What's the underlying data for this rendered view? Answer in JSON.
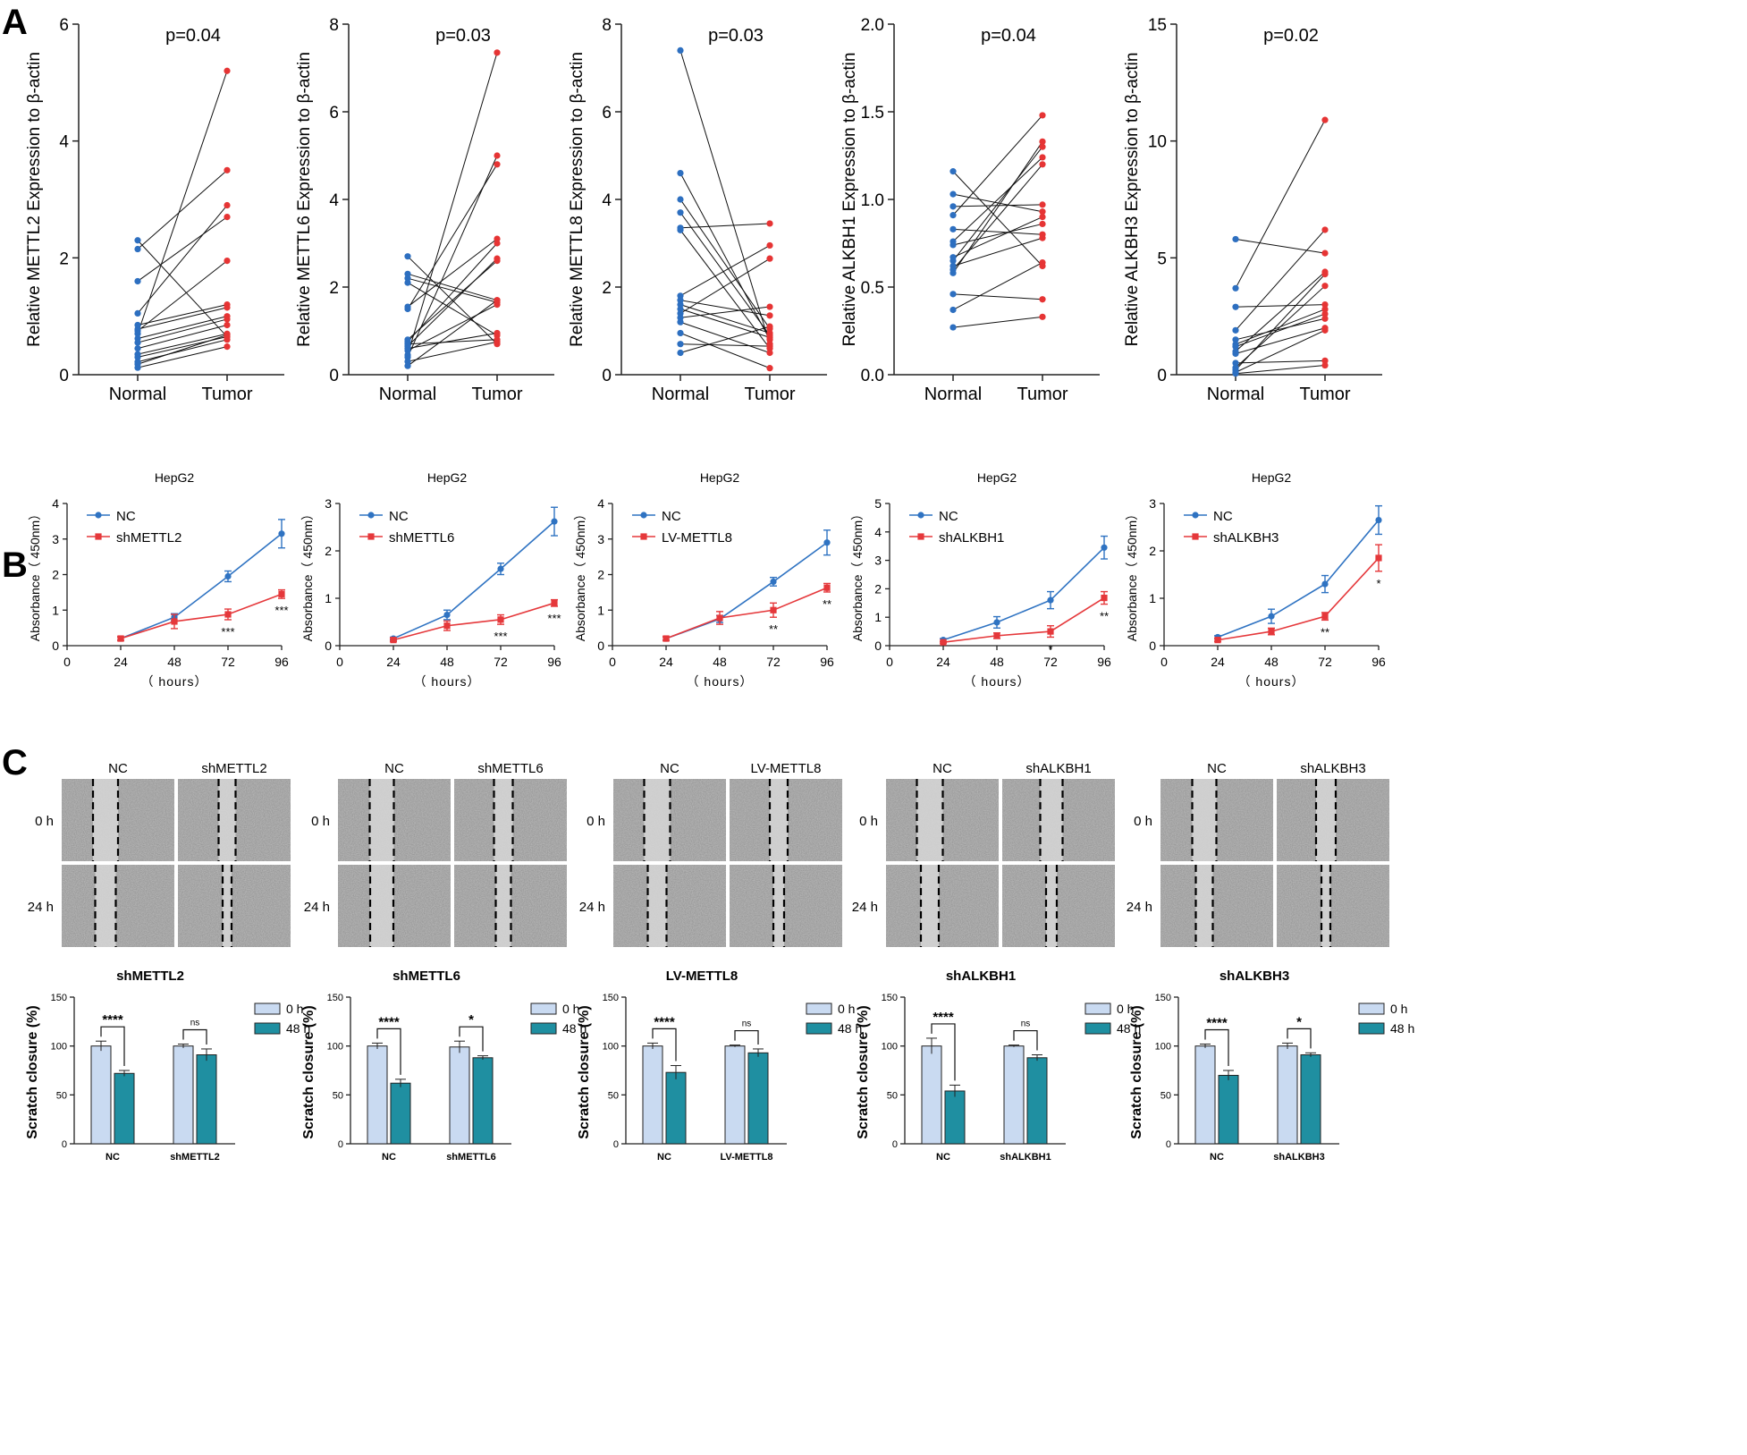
{
  "panels": {
    "A": "A",
    "B": "B",
    "C": "C"
  },
  "colors": {
    "normal": "#2d6fc0",
    "tumor": "#e63434",
    "nc": "#2f73c2",
    "treat": "#e5383b",
    "bar0": "#c9daf1",
    "bar48": "#1f8fa1",
    "axis": "#222222",
    "scratchGap": "#d6d6d6"
  },
  "chart_data": [
    {
      "id": "A1",
      "type": "scatter",
      "title": "p=0.04",
      "xlabel": "",
      "ylabel": "Relative METTL2 Expression to β-actin",
      "categories": [
        "Normal",
        "Tumor"
      ],
      "ylim": [
        0,
        6
      ],
      "yticks": [
        "0",
        "2",
        "4",
        "6"
      ],
      "pairs": [
        [
          2.3,
          0.65
        ],
        [
          2.15,
          3.5
        ],
        [
          1.6,
          2.7
        ],
        [
          1.05,
          2.9
        ],
        [
          0.85,
          1.2
        ],
        [
          0.78,
          1.15
        ],
        [
          0.75,
          1.95
        ],
        [
          0.7,
          5.2
        ],
        [
          0.62,
          1.0
        ],
        [
          0.55,
          0.95
        ],
        [
          0.45,
          0.85
        ],
        [
          0.35,
          0.7
        ],
        [
          0.3,
          0.65
        ],
        [
          0.22,
          0.6
        ],
        [
          0.18,
          0.68
        ],
        [
          0.12,
          0.48
        ]
      ]
    },
    {
      "id": "A2",
      "type": "scatter",
      "title": "p=0.03",
      "xlabel": "",
      "ylabel": "Relative METTL6 Expression to β-actin",
      "categories": [
        "Normal",
        "Tumor"
      ],
      "ylim": [
        0,
        8
      ],
      "yticks": [
        "0",
        "2",
        "4",
        "6",
        "8"
      ],
      "pairs": [
        [
          2.7,
          0.7
        ],
        [
          2.3,
          1.7
        ],
        [
          2.2,
          1.65
        ],
        [
          2.1,
          0.9
        ],
        [
          1.55,
          3.1
        ],
        [
          1.5,
          4.8
        ],
        [
          0.8,
          2.6
        ],
        [
          0.75,
          3.0
        ],
        [
          0.7,
          0.8
        ],
        [
          0.65,
          2.65
        ],
        [
          0.6,
          0.95
        ],
        [
          0.55,
          1.6
        ],
        [
          0.45,
          7.35
        ],
        [
          0.4,
          5.0
        ],
        [
          0.3,
          0.75
        ],
        [
          0.2,
          1.7
        ]
      ]
    },
    {
      "id": "A3",
      "type": "scatter",
      "title": "p=0.03",
      "xlabel": "",
      "ylabel": "Relative METTL8 Expression to β-actin",
      "categories": [
        "Normal",
        "Tumor"
      ],
      "ylim": [
        0,
        8
      ],
      "yticks": [
        "0",
        "2",
        "4",
        "6",
        "8"
      ],
      "pairs": [
        [
          7.4,
          0.7
        ],
        [
          4.6,
          0.8
        ],
        [
          4.0,
          1.05
        ],
        [
          3.7,
          0.9
        ],
        [
          3.35,
          3.45
        ],
        [
          3.3,
          0.6
        ],
        [
          1.8,
          2.95
        ],
        [
          1.7,
          1.35
        ],
        [
          1.6,
          0.95
        ],
        [
          1.5,
          0.85
        ],
        [
          1.4,
          2.65
        ],
        [
          1.3,
          1.55
        ],
        [
          1.2,
          0.5
        ],
        [
          0.95,
          0.15
        ],
        [
          0.7,
          0.65
        ],
        [
          0.5,
          1.1
        ]
      ]
    },
    {
      "id": "A4",
      "type": "scatter",
      "title": "p=0.04",
      "xlabel": "",
      "ylabel": "Relative ALKBH1 Expression to β-actin",
      "categories": [
        "Normal",
        "Tumor"
      ],
      "ylim": [
        0,
        2
      ],
      "yticks": [
        "0.0",
        "0.5",
        "1.0",
        "1.5",
        "2.0"
      ],
      "pairs": [
        [
          1.16,
          0.62
        ],
        [
          1.03,
          0.93
        ],
        [
          0.96,
          0.97
        ],
        [
          0.91,
          1.48
        ],
        [
          0.83,
          0.8
        ],
        [
          0.76,
          1.24
        ],
        [
          0.74,
          0.86
        ],
        [
          0.67,
          0.9
        ],
        [
          0.65,
          1.3
        ],
        [
          0.62,
          0.78
        ],
        [
          0.6,
          1.2
        ],
        [
          0.58,
          1.33
        ],
        [
          0.46,
          0.43
        ],
        [
          0.37,
          0.64
        ],
        [
          0.27,
          0.33
        ]
      ]
    },
    {
      "id": "A5",
      "type": "scatter",
      "title": "p=0.02",
      "xlabel": "",
      "ylabel": "Relative ALKBH3 Expression to β-actin",
      "categories": [
        "Normal",
        "Tumor"
      ],
      "ylim": [
        0,
        15
      ],
      "yticks": [
        "0",
        "5",
        "10",
        "15"
      ],
      "pairs": [
        [
          5.8,
          5.2
        ],
        [
          3.7,
          10.9
        ],
        [
          2.9,
          3.0
        ],
        [
          1.9,
          6.2
        ],
        [
          1.5,
          2.4
        ],
        [
          1.3,
          2.8
        ],
        [
          1.2,
          2.6
        ],
        [
          1.0,
          4.4
        ],
        [
          0.9,
          2.0
        ],
        [
          0.5,
          0.6
        ],
        [
          0.3,
          3.8
        ],
        [
          0.2,
          4.3
        ],
        [
          0.1,
          1.9
        ],
        [
          0.05,
          0.4
        ]
      ]
    },
    {
      "id": "B1",
      "type": "line",
      "title": "HepG2",
      "xlabel": "（ hours）",
      "ylabel": "Absorbance（ 450nm）",
      "xlim": [
        0,
        96
      ],
      "x": [
        24,
        48,
        72,
        96
      ],
      "xticks": [
        "0",
        "24",
        "48",
        "72",
        "96"
      ],
      "ylim": [
        0,
        4
      ],
      "yticks": [
        "0",
        "1",
        "2",
        "3",
        "4"
      ],
      "series": [
        {
          "name": "NC",
          "values": [
            0.2,
            0.8,
            1.95,
            3.15
          ],
          "err": [
            0.05,
            0.1,
            0.15,
            0.4
          ]
        },
        {
          "name": "shMETTL2",
          "values": [
            0.2,
            0.68,
            0.88,
            1.45
          ],
          "err": [
            0.05,
            0.2,
            0.15,
            0.12
          ]
        }
      ],
      "sig": [
        {
          "x": 72,
          "label": "***"
        },
        {
          "x": 96,
          "label": "***"
        }
      ]
    },
    {
      "id": "B2",
      "type": "line",
      "title": "HepG2",
      "xlabel": "（ hours）",
      "ylabel": "Absorbance（ 450nm）",
      "xlim": [
        0,
        96
      ],
      "x": [
        24,
        48,
        72,
        96
      ],
      "xticks": [
        "0",
        "24",
        "48",
        "72",
        "96"
      ],
      "ylim": [
        0,
        3
      ],
      "yticks": [
        "0",
        "1",
        "2",
        "3"
      ],
      "series": [
        {
          "name": "NC",
          "values": [
            0.15,
            0.65,
            1.62,
            2.62
          ],
          "err": [
            0.03,
            0.1,
            0.12,
            0.3
          ]
        },
        {
          "name": "shMETTL6",
          "values": [
            0.12,
            0.42,
            0.55,
            0.9
          ],
          "err": [
            0.03,
            0.1,
            0.1,
            0.07
          ]
        }
      ],
      "sig": [
        {
          "x": 72,
          "label": "***"
        },
        {
          "x": 96,
          "label": "***"
        }
      ]
    },
    {
      "id": "B3",
      "type": "line",
      "title": "HepG2",
      "xlabel": "（ hours）",
      "ylabel": "Absorbance（ 450nm）",
      "xlim": [
        0,
        96
      ],
      "x": [
        24,
        48,
        72,
        96
      ],
      "xticks": [
        "0",
        "24",
        "48",
        "72",
        "96"
      ],
      "ylim": [
        0,
        4
      ],
      "yticks": [
        "0",
        "1",
        "2",
        "3",
        "4"
      ],
      "series": [
        {
          "name": "NC",
          "values": [
            0.2,
            0.75,
            1.8,
            2.9
          ],
          "err": [
            0.05,
            0.1,
            0.12,
            0.35
          ]
        },
        {
          "name": "LV-METTL8",
          "values": [
            0.2,
            0.78,
            1.0,
            1.63
          ],
          "err": [
            0.05,
            0.18,
            0.2,
            0.12
          ]
        }
      ],
      "sig": [
        {
          "x": 72,
          "label": "**"
        },
        {
          "x": 96,
          "label": "**"
        }
      ]
    },
    {
      "id": "B4",
      "type": "line",
      "title": "HepG2",
      "xlabel": "（ hours）",
      "ylabel": "Absorbance（ 450nm）",
      "xlim": [
        0,
        96
      ],
      "x": [
        24,
        48,
        72,
        96
      ],
      "xticks": [
        "0",
        "24",
        "48",
        "72",
        "96"
      ],
      "ylim": [
        0,
        5
      ],
      "yticks": [
        "0",
        "1",
        "2",
        "3",
        "4",
        "5"
      ],
      "series": [
        {
          "name": "NC",
          "values": [
            0.2,
            0.82,
            1.6,
            3.45
          ],
          "err": [
            0.05,
            0.2,
            0.3,
            0.4
          ]
        },
        {
          "name": "shALKBH1",
          "values": [
            0.12,
            0.35,
            0.5,
            1.68
          ],
          "err": [
            0.03,
            0.1,
            0.2,
            0.22
          ]
        }
      ],
      "sig": [
        {
          "x": 72,
          "label": "*"
        },
        {
          "x": 96,
          "label": "**"
        }
      ]
    },
    {
      "id": "B5",
      "type": "line",
      "title": "HepG2",
      "xlabel": "（ hours）",
      "ylabel": "Absorbance（ 450nm）",
      "xlim": [
        0,
        96
      ],
      "x": [
        24,
        48,
        72,
        96
      ],
      "xticks": [
        "0",
        "24",
        "48",
        "72",
        "96"
      ],
      "ylim": [
        0,
        3
      ],
      "yticks": [
        "0",
        "1",
        "2",
        "3"
      ],
      "series": [
        {
          "name": "NC",
          "values": [
            0.18,
            0.62,
            1.3,
            2.65
          ],
          "err": [
            0.03,
            0.15,
            0.18,
            0.3
          ]
        },
        {
          "name": "shALKBH3",
          "values": [
            0.12,
            0.3,
            0.62,
            1.85
          ],
          "err": [
            0.03,
            0.07,
            0.08,
            0.28
          ]
        }
      ],
      "sig": [
        {
          "x": 72,
          "label": "**"
        },
        {
          "x": 96,
          "label": "*"
        }
      ]
    },
    {
      "id": "C1",
      "type": "bar",
      "title": "shMETTL2",
      "xlabel": "",
      "ylabel": "Scratch closure (%)",
      "categories": [
        "NC",
        "shMETTL2"
      ],
      "ylim": [
        0,
        150
      ],
      "yticks": [
        "0",
        "50",
        "100",
        "150"
      ],
      "series": [
        {
          "name": "0 h",
          "values": [
            100,
            100
          ],
          "err": [
            5,
            2
          ]
        },
        {
          "name": "48 h",
          "values": [
            72,
            91
          ],
          "err": [
            3,
            6
          ]
        }
      ],
      "sig": [
        "****",
        "ns"
      ]
    },
    {
      "id": "C2",
      "type": "bar",
      "title": "shMETTL6",
      "xlabel": "",
      "ylabel": "Scratch closure (%)",
      "categories": [
        "NC",
        "shMETTL6"
      ],
      "ylim": [
        0,
        150
      ],
      "yticks": [
        "0",
        "50",
        "100",
        "150"
      ],
      "series": [
        {
          "name": "0 h",
          "values": [
            100,
            99
          ],
          "err": [
            3,
            6
          ]
        },
        {
          "name": "48 h",
          "values": [
            62,
            88
          ],
          "err": [
            4,
            2
          ]
        }
      ],
      "sig": [
        "****",
        "*"
      ]
    },
    {
      "id": "C3",
      "type": "bar",
      "title": "LV-METTL8",
      "xlabel": "",
      "ylabel": "Scratch closure (%)",
      "categories": [
        "NC",
        "LV-METTL8"
      ],
      "ylim": [
        0,
        150
      ],
      "yticks": [
        "0",
        "50",
        "100",
        "150"
      ],
      "series": [
        {
          "name": "0 h",
          "values": [
            100,
            100
          ],
          "err": [
            3,
            1
          ]
        },
        {
          "name": "48 h",
          "values": [
            73,
            93
          ],
          "err": [
            7,
            4
          ]
        }
      ],
      "sig": [
        "****",
        "ns"
      ]
    },
    {
      "id": "C4",
      "type": "bar",
      "title": "shALKBH1",
      "xlabel": "",
      "ylabel": "Scratch closure (%)",
      "categories": [
        "NC",
        "shALKBH1"
      ],
      "ylim": [
        0,
        150
      ],
      "yticks": [
        "0",
        "50",
        "100",
        "150"
      ],
      "series": [
        {
          "name": "0 h",
          "values": [
            100,
            100
          ],
          "err": [
            8,
            1
          ]
        },
        {
          "name": "48 h",
          "values": [
            54,
            88
          ],
          "err": [
            6,
            3
          ]
        }
      ],
      "sig": [
        "****",
        "ns"
      ]
    },
    {
      "id": "C5",
      "type": "bar",
      "title": "shALKBH3",
      "xlabel": "",
      "ylabel": "Scratch closure (%)",
      "categories": [
        "NC",
        "shALKBH3"
      ],
      "ylim": [
        0,
        150
      ],
      "yticks": [
        "0",
        "50",
        "100",
        "150"
      ],
      "series": [
        {
          "name": "0 h",
          "values": [
            100,
            100
          ],
          "err": [
            2,
            3
          ]
        },
        {
          "name": "48 h",
          "values": [
            70,
            91
          ],
          "err": [
            5,
            2
          ]
        }
      ],
      "sig": [
        "****",
        "*"
      ]
    }
  ],
  "scratch": [
    {
      "cols": [
        "NC",
        "shMETTL2"
      ],
      "rows": [
        "0 h",
        "24 h"
      ],
      "gaps": [
        [
          28,
          19
        ],
        [
          23,
          10
        ]
      ]
    },
    {
      "cols": [
        "NC",
        "shMETTL6"
      ],
      "rows": [
        "0 h",
        "24 h"
      ],
      "gaps": [
        [
          27,
          21
        ],
        [
          26,
          17
        ]
      ]
    },
    {
      "cols": [
        "NC",
        "LV-METTL8"
      ],
      "rows": [
        "0 h",
        "24 h"
      ],
      "gaps": [
        [
          29,
          20
        ],
        [
          21,
          12
        ]
      ]
    },
    {
      "cols": [
        "NC",
        "shALKBH1"
      ],
      "rows": [
        "0 h",
        "24 h"
      ],
      "gaps": [
        [
          29,
          25
        ],
        [
          20,
          12
        ]
      ]
    },
    {
      "cols": [
        "NC",
        "shALKBH3"
      ],
      "rows": [
        "0 h",
        "24 h"
      ],
      "gaps": [
        [
          27,
          22
        ],
        [
          19,
          10
        ]
      ]
    }
  ]
}
